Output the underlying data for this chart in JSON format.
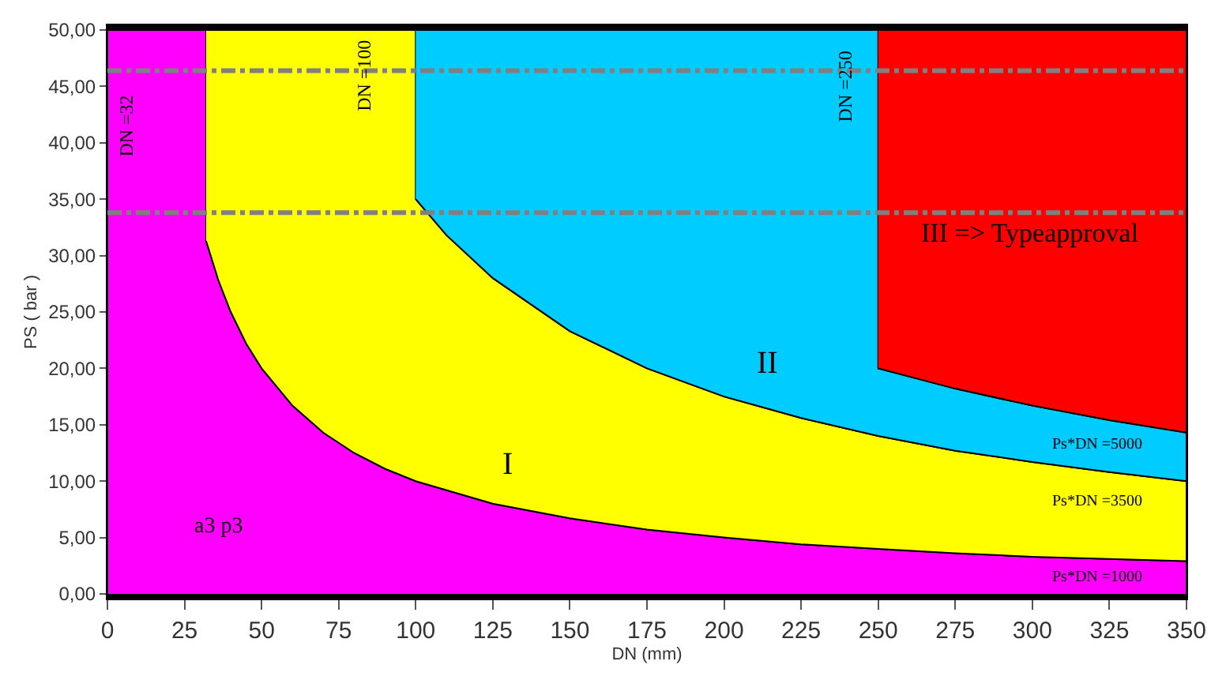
{
  "chart_data": {
    "type": "area",
    "xlabel": "DN (mm)",
    "ylabel": "PS ( bar )",
    "xlim": [
      0,
      350
    ],
    "xticks": [
      0,
      25,
      50,
      75,
      100,
      125,
      150,
      175,
      200,
      225,
      250,
      275,
      300,
      325,
      350
    ],
    "ylim": [
      0,
      50
    ],
    "yticks": [
      {
        "value": 0,
        "label": "0,00"
      },
      {
        "value": 5,
        "label": "5,00"
      },
      {
        "value": 10,
        "label": "10,00"
      },
      {
        "value": 15,
        "label": "15,00"
      },
      {
        "value": 20,
        "label": "20,00"
      },
      {
        "value": 25,
        "label": "25,00"
      },
      {
        "value": 30,
        "label": "30,00"
      },
      {
        "value": 35,
        "label": "35,00"
      },
      {
        "value": 40,
        "label": "40,00"
      },
      {
        "value": 45,
        "label": "45,00"
      },
      {
        "value": 50,
        "label": "50,00"
      }
    ],
    "series": [
      {
        "color": "#ff00ff",
        "x": [
          0,
          0,
          32,
          32,
          36,
          40,
          45,
          50,
          60,
          70,
          80,
          90,
          100,
          125,
          150,
          175,
          200,
          225,
          250,
          275,
          300,
          325,
          350,
          350
        ],
        "values": [
          0,
          50,
          50,
          31.3,
          27.8,
          25,
          22.2,
          20,
          16.7,
          14.3,
          12.5,
          11.1,
          10,
          8,
          6.7,
          5.7,
          5,
          4.4,
          4,
          3.6,
          3.3,
          3.1,
          2.9,
          0
        ]
      },
      {
        "color": "#ffff00",
        "x": [
          32,
          100,
          100,
          110,
          125,
          150,
          175,
          200,
          225,
          250,
          275,
          300,
          325,
          350,
          350,
          325,
          300,
          275,
          250,
          225,
          200,
          175,
          150,
          125,
          100,
          90,
          80,
          70,
          60,
          50,
          45,
          40,
          36,
          32
        ],
        "values": [
          50,
          50,
          35,
          31.8,
          28,
          23.3,
          20,
          17.5,
          15.6,
          14,
          12.7,
          11.7,
          10.8,
          10,
          2.9,
          3.1,
          3.3,
          3.6,
          4,
          4.4,
          5,
          5.7,
          6.7,
          8,
          10,
          11.1,
          12.5,
          14.3,
          16.7,
          20,
          22.2,
          25,
          27.8,
          31.3
        ]
      },
      {
        "color": "#00ccff",
        "x": [
          100,
          250,
          250,
          275,
          300,
          325,
          350,
          350,
          325,
          300,
          275,
          250,
          225,
          200,
          175,
          150,
          125,
          110,
          100
        ],
        "values": [
          50,
          50,
          20,
          18.2,
          16.7,
          15.4,
          14.3,
          10,
          10.8,
          11.7,
          12.7,
          14,
          15.6,
          17.5,
          20,
          23.3,
          28,
          31.8,
          35
        ]
      },
      {
        "color": "#ff0000",
        "x": [
          250,
          350,
          350,
          325,
          300,
          275,
          250
        ],
        "values": [
          50,
          50,
          14.3,
          15.4,
          16.7,
          18.2,
          20
        ]
      }
    ],
    "ref_lines": [
      {
        "axis": "y",
        "value": 46.4,
        "color": "#808080",
        "line_style": "dashed"
      },
      {
        "axis": "y",
        "value": 33.8,
        "color": "#808080",
        "line_style": "dashed"
      }
    ],
    "annotations": [
      "DN =32",
      "DN =100",
      "DN =250",
      "III => Typeapproval",
      "II",
      "I",
      "a3 p3",
      "Ps*DN =5000",
      "Ps*DN =3500",
      "Ps*DN =1000"
    ]
  }
}
